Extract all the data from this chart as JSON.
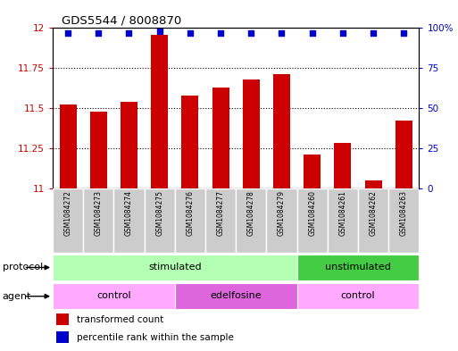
{
  "title": "GDS5544 / 8008870",
  "samples": [
    "GSM1084272",
    "GSM1084273",
    "GSM1084274",
    "GSM1084275",
    "GSM1084276",
    "GSM1084277",
    "GSM1084278",
    "GSM1084279",
    "GSM1084260",
    "GSM1084261",
    "GSM1084262",
    "GSM1084263"
  ],
  "bar_values": [
    11.52,
    11.48,
    11.54,
    11.96,
    11.58,
    11.63,
    11.68,
    11.71,
    11.21,
    11.28,
    11.05,
    11.42
  ],
  "percentile_values": [
    97,
    97,
    97,
    98,
    97,
    97,
    97,
    97,
    97,
    97,
    97,
    97
  ],
  "bar_color": "#cc0000",
  "dot_color": "#0000cc",
  "ylim_left": [
    11.0,
    12.0
  ],
  "ylim_right": [
    0,
    100
  ],
  "yticks_left": [
    11.0,
    11.25,
    11.5,
    11.75,
    12.0
  ],
  "yticks_right": [
    0,
    25,
    50,
    75,
    100
  ],
  "ytick_labels_left": [
    "11",
    "11.25",
    "11.5",
    "11.75",
    "12"
  ],
  "ytick_labels_right": [
    "0",
    "25",
    "50",
    "75",
    "100%"
  ],
  "grid_lines": [
    11.25,
    11.5,
    11.75
  ],
  "protocol_groups": [
    {
      "label": "stimulated",
      "start": 0,
      "end": 8,
      "color": "#b3ffb3"
    },
    {
      "label": "unstimulated",
      "start": 8,
      "end": 12,
      "color": "#44cc44"
    }
  ],
  "agent_groups": [
    {
      "label": "control",
      "start": 0,
      "end": 4,
      "color": "#ffaaff"
    },
    {
      "label": "edelfosine",
      "start": 4,
      "end": 8,
      "color": "#dd66dd"
    },
    {
      "label": "control",
      "start": 8,
      "end": 12,
      "color": "#ffaaff"
    }
  ],
  "legend_items": [
    {
      "label": "transformed count",
      "color": "#cc0000"
    },
    {
      "label": "percentile rank within the sample",
      "color": "#0000cc"
    }
  ],
  "protocol_label": "protocol",
  "agent_label": "agent",
  "sample_bg_color": "#cccccc",
  "sample_bg_color2": "#bbbbbb"
}
